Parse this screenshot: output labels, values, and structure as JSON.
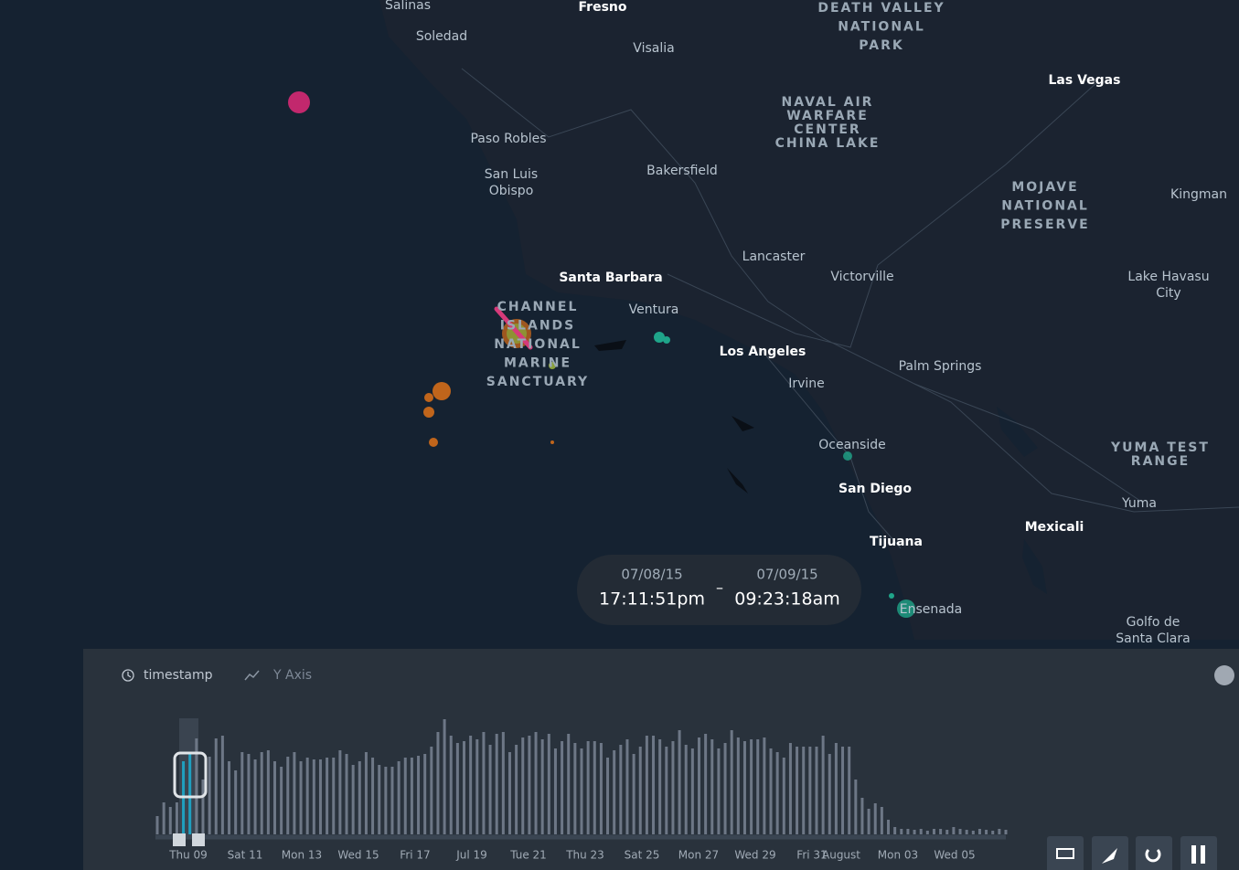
{
  "map": {
    "labels": [
      [
        "Salinas"
      ],
      [
        "Soledad"
      ],
      [
        "Fresno"
      ],
      [
        "Visalia"
      ],
      [
        "DEATH VALLEY",
        "NATIONAL",
        "PARK"
      ],
      [
        "Las Vegas"
      ],
      [
        "NAVAL AIR",
        "WARFARE",
        "CENTER",
        "CHINA LAKE"
      ],
      [
        "Paso Robles"
      ],
      [
        "San Luis",
        "Obispo"
      ],
      [
        "Bakersfield"
      ],
      [
        "MOJAVE",
        "NATIONAL",
        "PRESERVE"
      ],
      [
        "Kingman"
      ],
      [
        "Lancaster"
      ],
      [
        "Santa Barbara"
      ],
      [
        "Victorville"
      ],
      [
        "Lake Havasu",
        "City"
      ],
      [
        "CHANNEL",
        "ISLANDS",
        "NATIONAL",
        "MARINE",
        "SANCTUARY"
      ],
      [
        "Ventura"
      ],
      [
        "Los Angeles"
      ],
      [
        "Palm Springs"
      ],
      [
        "Irvine"
      ],
      [
        "Oceanside"
      ],
      [
        "YUMA TEST",
        "RANGE"
      ],
      [
        "San Diego"
      ],
      [
        "Yuma"
      ],
      [
        "Mexicali"
      ],
      [
        "Tijuana"
      ],
      [
        "Ensenada"
      ],
      [
        "Golfo de",
        "Santa Clara"
      ]
    ]
  },
  "time_range": {
    "start_date": "07/08/15",
    "start_time": "17:11:51pm",
    "separator": "–",
    "end_date": "07/09/15",
    "end_time": "09:23:18am"
  },
  "timeline": {
    "field": "timestamp",
    "y_axis": "Y Axis",
    "x_labels": [
      "Thu 09",
      "Sat 11",
      "Mon 13",
      "Wed 15",
      "Fri 17",
      "Jul 19",
      "Tue 21",
      "Thu 23",
      "Sat 25",
      "Mon 27",
      "Wed 29",
      "Fri 31",
      "August",
      "Mon 03",
      "Wed 05"
    ],
    "histogram": [
      20,
      35,
      30,
      35,
      80,
      90,
      105,
      60,
      85,
      105,
      108,
      80,
      70,
      90,
      88,
      82,
      90,
      92,
      80,
      74,
      85,
      90,
      80,
      84,
      82,
      82,
      84,
      84,
      92,
      88,
      76,
      80,
      90,
      84,
      76,
      74,
      74,
      80,
      84,
      84,
      86,
      88,
      96,
      112,
      126,
      108,
      100,
      102,
      108,
      104,
      112,
      98,
      110,
      112,
      90,
      98,
      106,
      108,
      112,
      104,
      110,
      94,
      102,
      110,
      100,
      94,
      102,
      102,
      100,
      84,
      92,
      98,
      104,
      88,
      96,
      108,
      108,
      104,
      96,
      102,
      114,
      98,
      94,
      106,
      110,
      104,
      94,
      100,
      114,
      106,
      102,
      104,
      104,
      106,
      94,
      90,
      84,
      100,
      96,
      96,
      96,
      96,
      108,
      88,
      100,
      96,
      96,
      60,
      40,
      28,
      34,
      30,
      16,
      8,
      6,
      6,
      5,
      6,
      4,
      6,
      6,
      5,
      8,
      6,
      5,
      4,
      6,
      5,
      4,
      6,
      5
    ]
  }
}
